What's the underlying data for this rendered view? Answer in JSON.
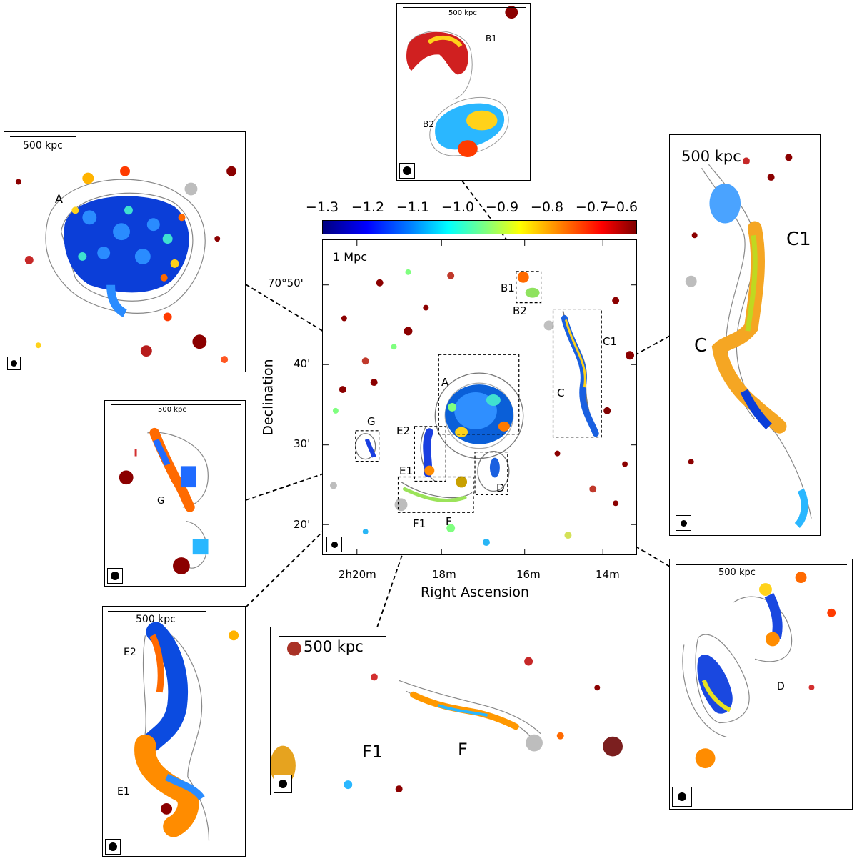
{
  "colorbar": {
    "ticks": [
      "−1.3",
      "−1.2",
      "−1.1",
      "−1.0",
      "−0.9",
      "−0.8",
      "−0.7",
      "−0.6"
    ],
    "colormap": [
      "#00007f",
      "#0000ff",
      "#007fff",
      "#00ffff",
      "#7fff7f",
      "#ffff00",
      "#ff7f00",
      "#ff0000",
      "#7f0000"
    ]
  },
  "main_map": {
    "scalebar": "1 Mpc",
    "xlabel": "Right Ascension",
    "ylabel": "Declination",
    "x_ticks": [
      "2h20m",
      "18m",
      "16m",
      "14m"
    ],
    "y_ticks": [
      "70°50'",
      "40'",
      "30'",
      "20'"
    ],
    "regions": {
      "A": "A",
      "B1": "B1",
      "B2": "B2",
      "C": "C",
      "C1": "C1",
      "D": "D",
      "E1": "E1",
      "E2": "E2",
      "F": "F",
      "F1": "F1",
      "G": "G"
    }
  },
  "insets": {
    "A": {
      "scalebar": "500 kpc",
      "labels": [
        "A"
      ]
    },
    "B": {
      "scalebar": "500 kpc",
      "labels": [
        "B1",
        "B2"
      ]
    },
    "C": {
      "scalebar": "500 kpc",
      "labels": [
        "C1",
        "C"
      ]
    },
    "G": {
      "scalebar": "500 kpc",
      "labels": [
        "G"
      ]
    },
    "E": {
      "scalebar": "500 kpc",
      "labels": [
        "E2",
        "E1"
      ]
    },
    "F": {
      "scalebar": "500 kpc",
      "labels": [
        "F1",
        "F"
      ]
    },
    "D": {
      "scalebar": "500 kpc",
      "labels": [
        "D"
      ]
    }
  }
}
